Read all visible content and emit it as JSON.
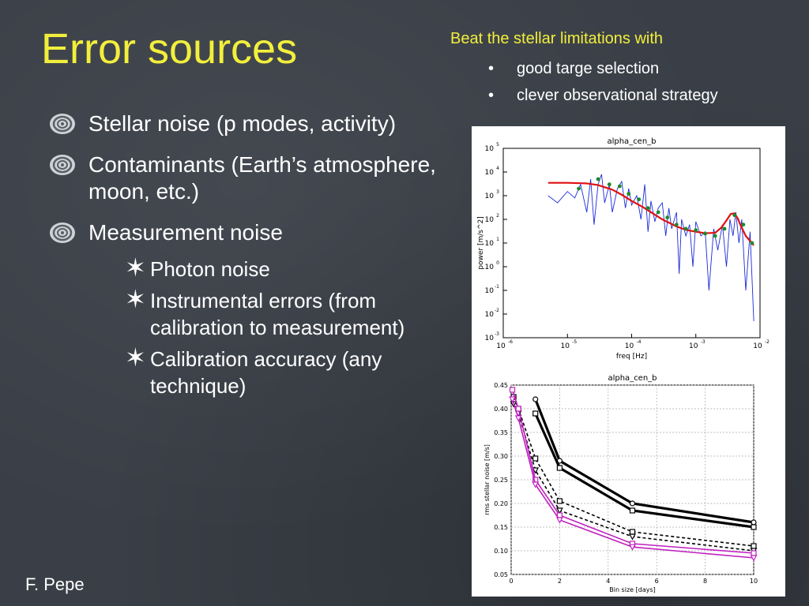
{
  "slide": {
    "title": "Error sources",
    "beat_heading": "Beat the stellar limitations with",
    "beat_items": [
      "good targe selection",
      "clever observational strategy"
    ],
    "bullets": [
      "Stellar noise (p modes, activity)",
      "Contaminants (Earth’s atmosphere, moon, etc.)",
      "Measurement noise"
    ],
    "sub_bullets": [
      "Photon noise",
      "Instrumental errors (from calibration to measurement)",
      "Calibration accuracy (any technique)"
    ],
    "author": "F. Pepe"
  },
  "colors": {
    "title": "#f2ef3c",
    "background": "#3a3f47"
  },
  "chart_data": [
    {
      "type": "line",
      "title": "alpha_cen_b",
      "xlabel": "freq [Hz]",
      "ylabel": "power [m/s^2]",
      "xscale": "log",
      "yscale": "log",
      "xlim": [
        1e-06,
        0.01
      ],
      "ylim": [
        0.001,
        100000.0
      ],
      "x_tick_labels": [
        "10",
        "10",
        "10",
        "10",
        "10"
      ],
      "x_tick_exponents": [
        "-6",
        "-5",
        "-4",
        "-3",
        "-2"
      ],
      "y_tick_labels": [
        "10",
        "10",
        "10",
        "10",
        "10",
        "10",
        "10",
        "10",
        "10"
      ],
      "y_tick_exponents": [
        "-3",
        "-2",
        "-1",
        "0",
        "1",
        "2",
        "3",
        "4",
        "5"
      ],
      "series": [
        {
          "color": "#1a2bd8",
          "x": [
            5e-06,
            7e-06,
            1e-05,
            1.3e-05,
            1.6e-05,
            2e-05,
            2.3e-05,
            2.6e-05,
            3e-05,
            3.4e-05,
            3.8e-05,
            4.5e-05,
            5e-05,
            6e-05,
            7e-05,
            8e-05,
            9e-05,
            0.0001,
            0.00012,
            0.00014,
            0.00016,
            0.00018,
            0.0002,
            0.00023,
            0.00026,
            0.0003,
            0.00034,
            0.00038,
            0.00042,
            0.0005,
            0.00055,
            0.0006,
            0.0007,
            0.0008,
            0.0009,
            0.001,
            0.0012,
            0.0014,
            0.0016,
            0.0019,
            0.0022,
            0.0026,
            0.003,
            0.0034,
            0.0038,
            0.0042,
            0.0047,
            0.0052,
            0.006,
            0.007,
            0.008
          ],
          "y": [
            1000,
            500,
            1500,
            800,
            3000,
            200,
            5000,
            60,
            3000,
            8000,
            500,
            3000,
            200,
            2000,
            4000,
            300,
            2000,
            400,
            1000,
            100,
            3000,
            30,
            600,
            80,
            300,
            500,
            20,
            300,
            40,
            200,
            0.5,
            100,
            20,
            60,
            1,
            80,
            20,
            30,
            0.1,
            40,
            5,
            60,
            1,
            100,
            20,
            200,
            10,
            100,
            0.1,
            30,
            0.005
          ]
        },
        {
          "color": "#e01010",
          "x": [
            5e-06,
            1e-05,
            2e-05,
            3e-05,
            5e-05,
            7e-05,
            0.0001,
            0.00015,
            0.0002,
            0.0003,
            0.0005,
            0.0007,
            0.001,
            0.0014,
            0.002,
            0.0025,
            0.003,
            0.0035,
            0.004,
            0.0045,
            0.005,
            0.006,
            0.008
          ],
          "y": [
            3500,
            3500,
            3300,
            2800,
            1800,
            1100,
            600,
            330,
            200,
            100,
            50,
            36,
            30,
            26,
            27,
            45,
            90,
            170,
            180,
            110,
            55,
            20,
            8
          ]
        },
        {
          "color": "#1d8a2a",
          "x": [
            1.5e-05,
            3e-05,
            4.5e-05,
            6.5e-05,
            9e-05,
            0.00013,
            0.00018,
            0.00026,
            0.00036,
            0.0005,
            0.0007,
            0.001,
            0.0014,
            0.002,
            0.0028,
            0.004,
            0.0055,
            0.0075
          ],
          "y": [
            2000,
            5000,
            3000,
            2500,
            1200,
            700,
            300,
            200,
            120,
            60,
            40,
            35,
            25,
            20,
            40,
            150,
            60,
            10
          ]
        }
      ]
    },
    {
      "type": "line",
      "title": "alpha_cen_b",
      "xlabel": "Bin size [days]",
      "ylabel": "rms stellar noise [m/s]",
      "xlim": [
        0,
        10
      ],
      "ylim": [
        0.05,
        0.45
      ],
      "grid": true,
      "x_ticks": [
        0,
        2,
        4,
        6,
        8,
        10
      ],
      "y_ticks": [
        "0.05",
        "0.10",
        "0.15",
        "0.20",
        "0.25",
        "0.30",
        "0.35",
        "0.40",
        "0.45"
      ],
      "series": [
        {
          "color": "#000000",
          "style": "solid-thick",
          "marker": "circle",
          "x": [
            1,
            2,
            5,
            10
          ],
          "y": [
            0.42,
            0.29,
            0.2,
            0.16
          ]
        },
        {
          "color": "#000000",
          "style": "solid-thick",
          "marker": "square",
          "x": [
            1,
            2,
            5,
            10
          ],
          "y": [
            0.39,
            0.275,
            0.185,
            0.15
          ]
        },
        {
          "color": "#000000",
          "style": "dashed",
          "marker": "square",
          "x": [
            0.1,
            0.3,
            1,
            2,
            5,
            10
          ],
          "y": [
            0.425,
            0.4,
            0.295,
            0.205,
            0.14,
            0.11
          ]
        },
        {
          "color": "#000000",
          "style": "dashed",
          "marker": "triangle",
          "x": [
            0.1,
            0.3,
            1,
            2,
            5,
            10
          ],
          "y": [
            0.41,
            0.39,
            0.27,
            0.185,
            0.13,
            0.1
          ]
        },
        {
          "color": "#c020c0",
          "style": "solid",
          "marker": "square",
          "x": [
            0.05,
            0.3,
            1,
            2,
            5,
            10
          ],
          "y": [
            0.44,
            0.4,
            0.25,
            0.175,
            0.115,
            0.095
          ]
        },
        {
          "color": "#c020c0",
          "style": "solid",
          "marker": "triangle",
          "x": [
            0.05,
            0.3,
            1,
            2,
            5,
            10
          ],
          "y": [
            0.42,
            0.38,
            0.24,
            0.165,
            0.108,
            0.085
          ]
        }
      ]
    }
  ]
}
